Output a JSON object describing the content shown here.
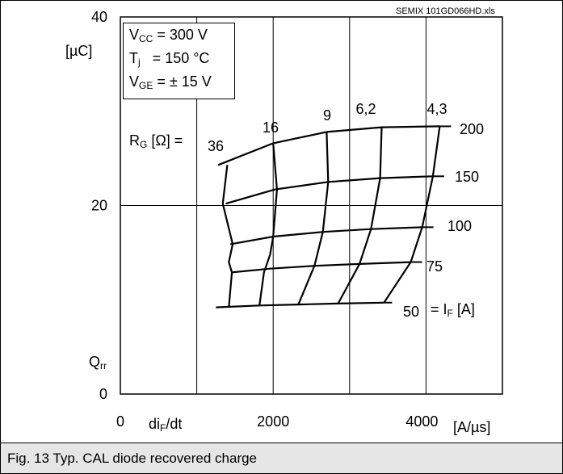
{
  "chart_data": {
    "type": "line",
    "xlim": [
      0,
      5000
    ],
    "ylim": [
      0,
      40
    ],
    "x_ticks": [
      "0",
      "2000",
      "4000"
    ],
    "y_ticks": [
      "0",
      "20",
      "40"
    ],
    "y_unit": "[µC]",
    "y_symbol": {
      "main": "Q",
      "sub": "rr"
    },
    "x_symbol": {
      "main": "di",
      "sub": "F",
      "rest": "/dt"
    },
    "x_unit": "[A/µs]",
    "grid": true,
    "file_label": "SEMIX 101GD066HD.xls",
    "conditions": {
      "vcc": {
        "main": "V",
        "sub": "CC",
        "rest": " = 300 V"
      },
      "tj": {
        "main": "T",
        "sub": "j",
        "rest": "   = 150 °C"
      },
      "vge": {
        "main": "V",
        "sub": "GE",
        "rest": " = ± 15 V"
      }
    },
    "rg_label": {
      "main": "R",
      "sub": "G",
      "rest": " [Ω] ="
    },
    "if_label": {
      "pre": "= I",
      "sub": "F",
      "rest": " [A]"
    },
    "rg_values": [
      "36",
      "16",
      "9",
      "6,2",
      "4,3"
    ],
    "if_values": [
      "200",
      "150",
      "100",
      "75",
      "50"
    ],
    "series_if": [
      {
        "name": "200",
        "x": [
          1280,
          2000,
          2700,
          3420,
          4180
        ],
        "y": [
          24.3,
          26.6,
          27.8,
          28.3,
          28.4
        ]
      },
      {
        "name": "150",
        "x": [
          1380,
          2020,
          2720,
          3400,
          4090
        ],
        "y": [
          20.2,
          21.7,
          22.5,
          22.9,
          23.1
        ]
      },
      {
        "name": "100",
        "x": [
          1440,
          2000,
          2650,
          3280,
          3950
        ],
        "y": [
          15.9,
          16.7,
          17.2,
          17.5,
          17.7
        ]
      },
      {
        "name": "75",
        "x": [
          1450,
          1960,
          2540,
          3130,
          3800
        ],
        "y": [
          12.9,
          13.3,
          13.6,
          13.8,
          14.0
        ]
      },
      {
        "name": "50",
        "x": [
          1250,
          1820,
          2330,
          2850,
          3450
        ],
        "y": [
          9.2,
          9.4,
          9.5,
          9.6,
          9.7
        ]
      }
    ],
    "series_rg": [
      {
        "name": "36",
        "x": [
          1400,
          1340,
          1470,
          1420,
          1460,
          1420
        ],
        "y": [
          24.3,
          20.2,
          15.9,
          14.0,
          12.9,
          9.2
        ]
      },
      {
        "name": "16",
        "x": [
          2000,
          2050,
          2000,
          1960,
          1880,
          1820
        ],
        "y": [
          26.6,
          21.7,
          16.7,
          14.8,
          12.9,
          9.4
        ]
      },
      {
        "name": "9",
        "x": [
          2700,
          2720,
          2650,
          2540,
          2330
        ],
        "y": [
          27.8,
          22.5,
          17.2,
          13.6,
          9.5
        ]
      },
      {
        "name": "6,2",
        "x": [
          3420,
          3400,
          3280,
          3130,
          2850
        ],
        "y": [
          28.3,
          22.9,
          17.5,
          13.8,
          9.6
        ]
      },
      {
        "name": "4,3",
        "x": [
          4180,
          4090,
          3950,
          3800,
          3450
        ],
        "y": [
          28.4,
          23.1,
          17.7,
          14.0,
          9.7
        ]
      }
    ]
  },
  "caption": "Fig. 13 Typ. CAL diode recovered charge"
}
